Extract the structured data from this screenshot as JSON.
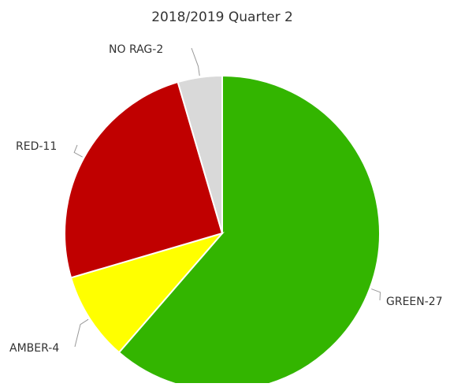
{
  "chart_data": {
    "type": "pie",
    "title": "2018/2019 Quarter 2",
    "slices": [
      {
        "label": "GREEN-27",
        "name": "GREEN",
        "value": 27,
        "color": "#33b500"
      },
      {
        "label": "AMBER-4",
        "name": "AMBER",
        "value": 4,
        "color": "#ffff00"
      },
      {
        "label": "RED-11",
        "name": "RED",
        "value": 11,
        "color": "#c00000"
      },
      {
        "label": "NO RAG-2",
        "name": "NO RAG",
        "value": 2,
        "color": "#d9d9d9"
      }
    ],
    "start_angle_deg": 0,
    "direction": "clockwise",
    "legend": "none",
    "data_labels": "outside"
  }
}
